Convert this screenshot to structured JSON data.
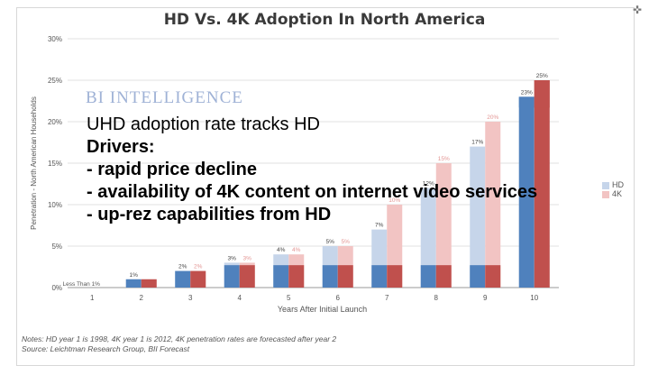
{
  "overlay": {
    "line1": "UHD adoption rate tracks HD",
    "line2": "Drivers:",
    "line3": "- rapid price decline",
    "line4": "- availability of 4K content on internet video services",
    "line5": "- up-rez capabilities from HD"
  },
  "watermark": "BI INTELLIGENCE",
  "notes": {
    "line1": "Notes: HD year 1 is 1998, 4K year 1 is 2012, 4K penetration rates are forecasted after year 2",
    "line2": "Source: Leichtman Research Group, BII Forecast"
  },
  "colors": {
    "hd_actual": "#4f81bd",
    "hd_light": "#c6d5ea",
    "k4_actual": "#c0504d",
    "k4_light": "#f2c4c3",
    "grid": "#d9d9d9",
    "axis_text": "#555555"
  },
  "chart_data": {
    "type": "bar",
    "title": "HD Vs. 4K Adoption In North America",
    "xlabel": "Years After Initial Launch",
    "ylabel": "Penetration - North American Households",
    "ylim": [
      0,
      30
    ],
    "yticks": [
      "0%",
      "5%",
      "10%",
      "15%",
      "20%",
      "25%",
      "30%"
    ],
    "categories": [
      "1",
      "2",
      "3",
      "4",
      "5",
      "6",
      "7",
      "8",
      "9",
      "10"
    ],
    "series": [
      {
        "name": "HD",
        "values": [
          0.5,
          1,
          2,
          3,
          4,
          5,
          7,
          12,
          17,
          23
        ],
        "labels": [
          "Less Than 1%",
          "1%",
          "2%",
          "3%",
          "4%",
          "5%",
          "7%",
          "12%",
          "17%",
          "23%"
        ]
      },
      {
        "name": "4K",
        "values": [
          0.5,
          1,
          2,
          3,
          4,
          5,
          10,
          15,
          20,
          25
        ],
        "labels": [
          "",
          "",
          "2%",
          "3%",
          "4%",
          "5%",
          "10%",
          "15%",
          "20%",
          "25%"
        ]
      }
    ],
    "legend": {
      "position": "right",
      "entries": [
        "HD",
        "4K"
      ]
    }
  }
}
